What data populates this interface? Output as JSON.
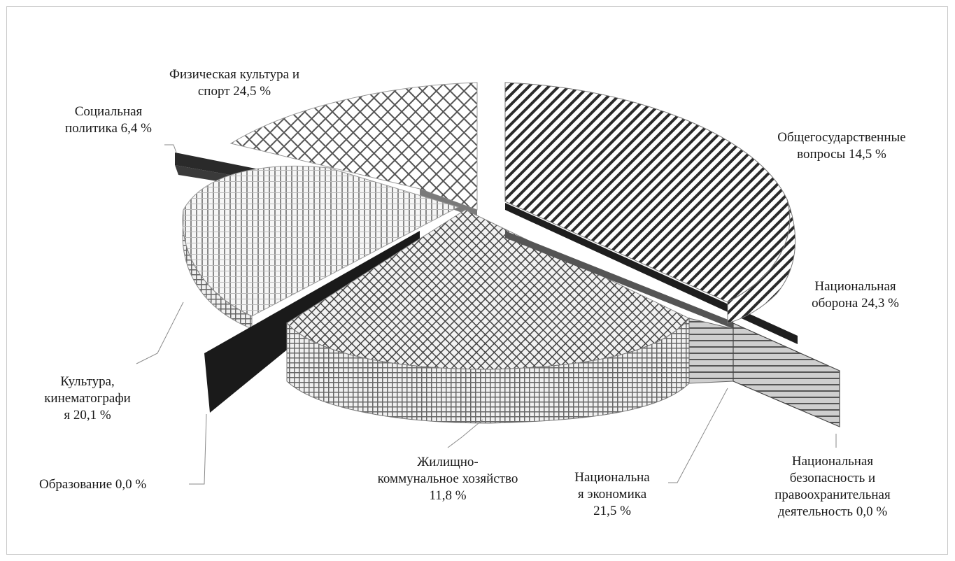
{
  "chart_data": {
    "type": "pie",
    "style": "3d-exploded-pie",
    "slices": [
      {
        "label": "Общегосударственные\nвопросы 14,5 %",
        "value": 14.5
      },
      {
        "label": "Национальная\nоборона 24,3 %",
        "value": 24.3
      },
      {
        "label": "Национальная\nбезопасность и\nправоохранительная\nдеятельность 0,0 %",
        "value": 0.0
      },
      {
        "label": "Национальна\nя экономика\n21,5 %",
        "value": 21.5
      },
      {
        "label": "Жилищно-\nкоммунальное хозяйство\n11,8 %",
        "value": 11.8
      },
      {
        "label": "Образование 0,0 %",
        "value": 0.0
      },
      {
        "label": "Культура,\nкинематографи\nя 20,1 %",
        "value": 20.1
      },
      {
        "label": "Социальная\nполитика 6,4 %",
        "value": 6.4
      },
      {
        "label": "Физическая культура и\nспорт 24,5 %",
        "value": 24.5
      }
    ],
    "colors": {
      "ink": "#1a1a1a",
      "dark": "#2a2a2a",
      "mid": "#7a7a7a",
      "light": "#f4f4f4",
      "leader": "#8a8a8a"
    }
  }
}
